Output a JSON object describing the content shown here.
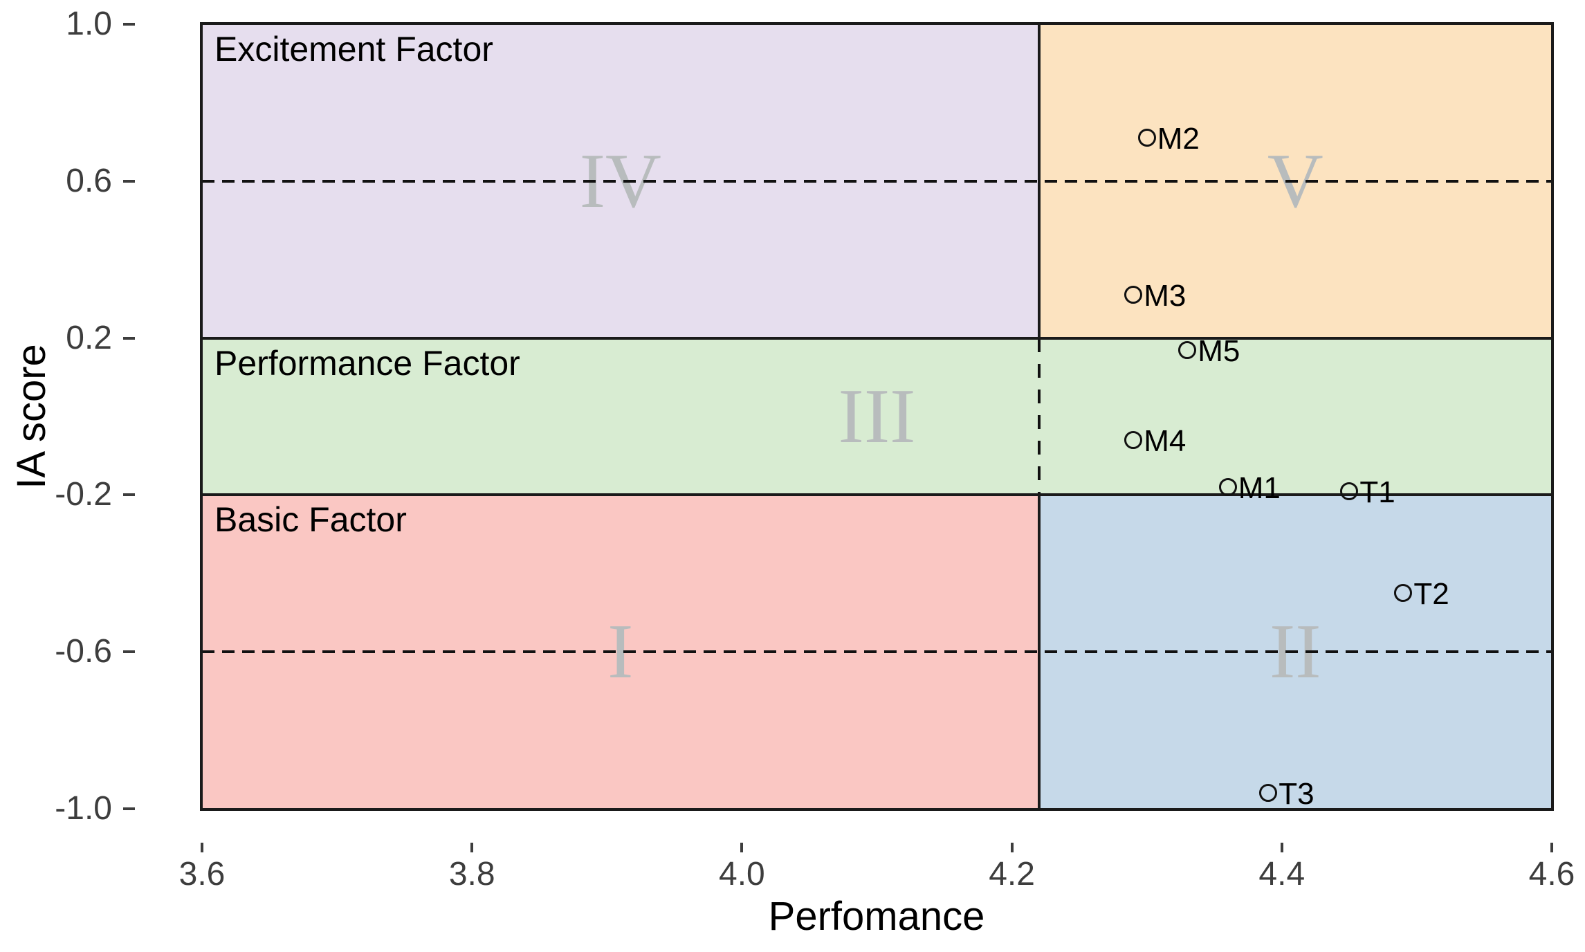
{
  "chart_data": {
    "type": "scatter",
    "title": "",
    "xlabel": "Perfomance",
    "ylabel": "IA score",
    "xlim": [
      3.6,
      4.6
    ],
    "ylim": [
      -1.0,
      1.0
    ],
    "grid": false,
    "legend": "none",
    "x_ticks": [
      3.6,
      3.8,
      4.0,
      4.2,
      4.4,
      4.6
    ],
    "x_tick_labels": [
      "3.6",
      "3.8",
      "4.0",
      "4.2",
      "4.4",
      "4.6"
    ],
    "y_ticks": [
      1.0,
      0.6,
      0.2,
      -0.2,
      -0.6,
      -1.0
    ],
    "y_tick_labels": [
      "1.0",
      "0.6",
      "0.2",
      "-0.2",
      "-0.6",
      "-1.0"
    ],
    "split_x": 4.22,
    "band_y": [
      -0.2,
      0.2
    ],
    "dashed_y": [
      0.6,
      -0.6
    ],
    "numeral_color": "#b8bcbd",
    "regions": [
      {
        "numeral": "IV",
        "title": "Excitement Factor",
        "x0": 3.6,
        "x1": 4.22,
        "y0": 0.2,
        "y1": 1.0,
        "fill": "#e6deee"
      },
      {
        "numeral": "V",
        "title": "",
        "x0": 4.22,
        "x1": 4.6,
        "y0": 0.2,
        "y1": 1.0,
        "fill": "#fce3c0"
      },
      {
        "numeral": "III",
        "title": "Performance Factor",
        "x0": 3.6,
        "x1": 4.6,
        "y0": -0.2,
        "y1": 0.2,
        "fill": "#d8ecd2"
      },
      {
        "numeral": "I",
        "title": "Basic Factor",
        "x0": 3.6,
        "x1": 4.22,
        "y0": -1.0,
        "y1": -0.2,
        "fill": "#fac7c3"
      },
      {
        "numeral": "II",
        "title": "",
        "x0": 4.22,
        "x1": 4.6,
        "y0": -1.0,
        "y1": -0.2,
        "fill": "#c6d9e9"
      }
    ],
    "points": [
      {
        "label": "M2",
        "x": 4.3,
        "y": 0.71
      },
      {
        "label": "M3",
        "x": 4.29,
        "y": 0.31
      },
      {
        "label": "M5",
        "x": 4.33,
        "y": 0.17
      },
      {
        "label": "M4",
        "x": 4.29,
        "y": -0.06
      },
      {
        "label": "M1",
        "x": 4.36,
        "y": -0.18
      },
      {
        "label": "T1",
        "x": 4.45,
        "y": -0.19
      },
      {
        "label": "T2",
        "x": 4.49,
        "y": -0.45
      },
      {
        "label": "T3",
        "x": 4.39,
        "y": -0.96
      }
    ]
  }
}
